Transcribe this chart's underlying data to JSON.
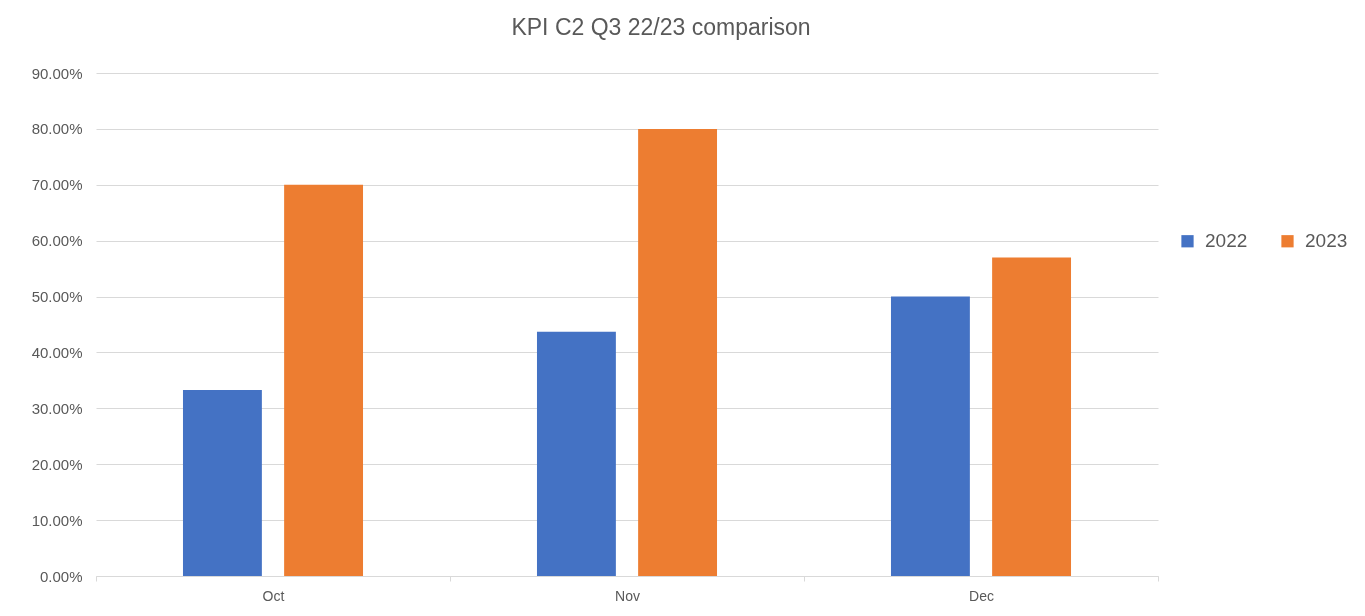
{
  "chart_data": {
    "type": "bar",
    "title": "KPI C2 Q3 22/23 comparison",
    "categories": [
      "Oct",
      "Nov",
      "Dec"
    ],
    "series": [
      {
        "name": "2022",
        "color": "#4472c4",
        "values": [
          33.3,
          43.7,
          50
        ]
      },
      {
        "name": "2023",
        "color": "#ed7d31",
        "values": [
          70,
          80,
          57
        ]
      }
    ],
    "ylim": [
      0,
      90
    ],
    "yticks": [
      {
        "value": 0,
        "label": "0.00%"
      },
      {
        "value": 10,
        "label": "10.00%"
      },
      {
        "value": 20,
        "label": "20.00%"
      },
      {
        "value": 30,
        "label": "30.00%"
      },
      {
        "value": 40,
        "label": "40.00%"
      },
      {
        "value": 50,
        "label": "50.00%"
      },
      {
        "value": 60,
        "label": "60.00%"
      },
      {
        "value": 70,
        "label": "70.00%"
      },
      {
        "value": 80,
        "label": "80.00%"
      },
      {
        "value": 90,
        "label": "90.00%"
      }
    ],
    "grid": "y",
    "legend": "right"
  }
}
